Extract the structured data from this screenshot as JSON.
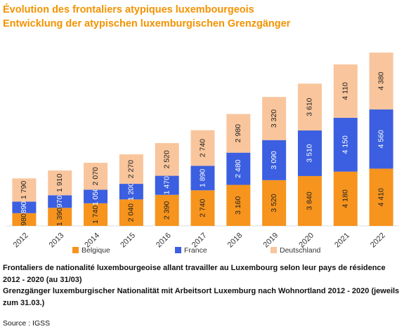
{
  "chart_data": {
    "type": "stacked-bar",
    "title": "Évolution des frontaliers atypiques luxembourgeois",
    "subtitle": "Entwicklung der atypischen luxemburgischen Grenzgänger",
    "categories": [
      "2012",
      "2013",
      "2014",
      "2015",
      "2016",
      "2017",
      "2018",
      "2019",
      "2020",
      "2021",
      "2022"
    ],
    "series": [
      {
        "name": "Belgique",
        "color": "#f7941d",
        "label_color": "#222222",
        "values": [
          980,
          1390,
          1740,
          2040,
          2390,
          2740,
          3160,
          3520,
          3840,
          4180,
          4410
        ],
        "value_labels": [
          "980",
          "1 390",
          "1 740",
          "2 040",
          "2 390",
          "2 740",
          "3 160",
          "3 520",
          "3 840",
          "4 180",
          "4 410"
        ]
      },
      {
        "name": "France",
        "color": "#3b5fe0",
        "label_color": "#ffffff",
        "values": [
          890,
          970,
          1050,
          1200,
          1470,
          1890,
          2480,
          3090,
          3510,
          4150,
          4560
        ],
        "value_labels": [
          "890",
          "970",
          "1 050",
          "1 200",
          "1 470",
          "1 890",
          "2 480",
          "3 090",
          "3 510",
          "4 150",
          "4 560"
        ]
      },
      {
        "name": "Deutschland",
        "color": "#f9c59c",
        "label_color": "#222222",
        "values": [
          1790,
          1910,
          2070,
          2270,
          2520,
          2740,
          2980,
          3320,
          3610,
          4110,
          4380
        ],
        "value_labels": [
          "1 790",
          "1 910",
          "2 070",
          "2 270",
          "2 520",
          "2 740",
          "2 980",
          "3 320",
          "3 610",
          "4 110",
          "4 380"
        ]
      }
    ],
    "footnote_fr": "Frontaliers de nationalité luxembourgeoise allant travailler au Luxembourg selon leur pays de résidence 2012 - 2020 (au 31/03)",
    "footnote_de": "Grenzgänger luxemburgischer Nationalität mit Arbeitsort Luxemburg nach Wohnortland 2012 - 2020 (jeweils zum 31.03.)",
    "source": "Source : IGSS"
  }
}
